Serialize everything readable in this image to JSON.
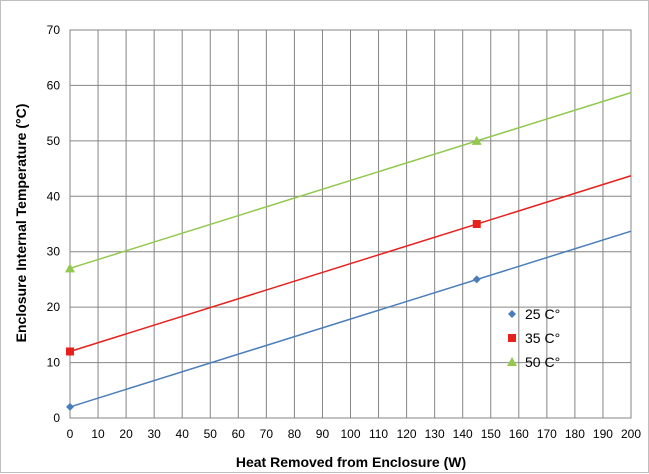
{
  "chart_data": {
    "type": "line",
    "title": "",
    "xlabel": "Heat  Removed  from  Enclosure (W)",
    "ylabel": "Enclosure  Internal  Temperature (°C)",
    "xlim": [
      0,
      200
    ],
    "ylim": [
      0,
      70
    ],
    "xticks": [
      0,
      10,
      20,
      30,
      40,
      50,
      60,
      70,
      80,
      90,
      100,
      110,
      120,
      130,
      140,
      150,
      160,
      170,
      180,
      190,
      200
    ],
    "yticks": [
      0,
      10,
      20,
      30,
      40,
      50,
      60,
      70
    ],
    "grid": true,
    "legend_position": "right",
    "series": [
      {
        "name": "25 C°",
        "color": "#4a7ebb",
        "marker": "diamond",
        "line": [
          [
            0,
            2
          ],
          [
            200,
            33.7
          ]
        ],
        "points": [
          [
            0,
            2
          ],
          [
            145,
            25
          ]
        ]
      },
      {
        "name": "35 C°",
        "color": "#e8201c",
        "marker": "square",
        "line": [
          [
            0,
            12
          ],
          [
            200,
            43.7
          ]
        ],
        "points": [
          [
            0,
            12
          ],
          [
            145,
            35
          ]
        ]
      },
      {
        "name": "50 C°",
        "color": "#92c84e",
        "marker": "triangle",
        "line": [
          [
            0,
            27
          ],
          [
            200,
            58.7
          ]
        ],
        "points": [
          [
            0,
            27
          ],
          [
            145,
            50
          ]
        ]
      }
    ]
  }
}
